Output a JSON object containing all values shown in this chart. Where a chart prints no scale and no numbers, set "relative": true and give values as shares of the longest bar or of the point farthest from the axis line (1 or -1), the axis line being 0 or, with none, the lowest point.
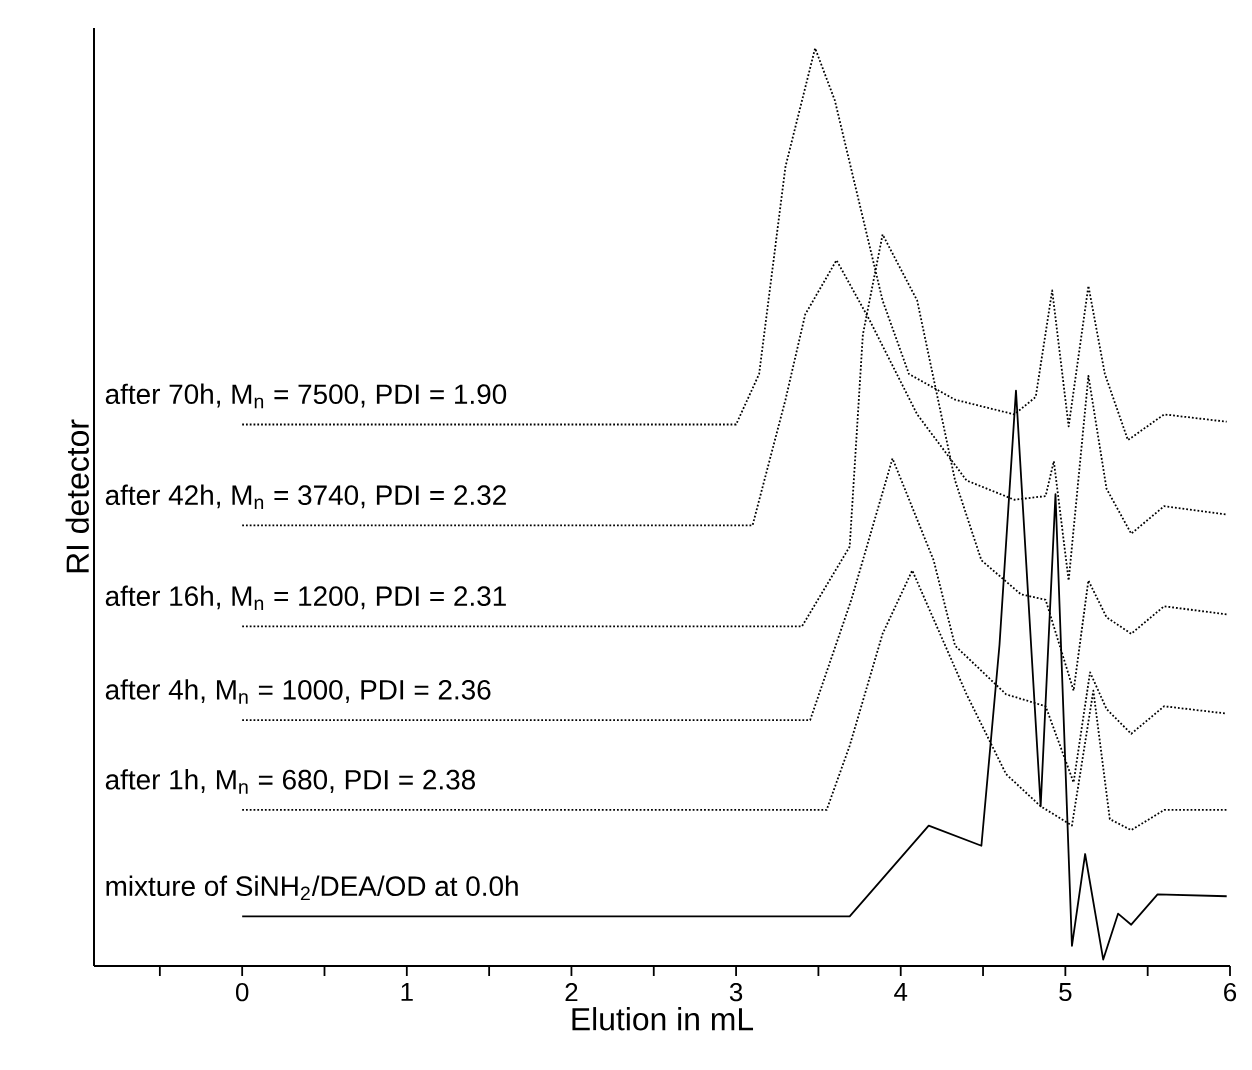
{
  "chart_data": {
    "type": "line",
    "xlabel": "Elution in mL",
    "ylabel": "RI detector",
    "relative": true,
    "xlim": [
      -0.9,
      6
    ],
    "xticks": [
      {
        "value": -0.5,
        "label": null
      },
      0,
      {
        "value": 0.5,
        "label": null
      },
      1,
      {
        "value": 1.5,
        "label": null
      },
      2,
      {
        "value": 2.5,
        "label": null
      },
      3,
      {
        "value": 3.5,
        "label": null
      },
      4,
      {
        "value": 4.5,
        "label": null
      },
      5,
      {
        "value": 5.5,
        "label": null
      },
      6
    ],
    "tick_labels": "x",
    "marker": "none",
    "series": [
      {
        "name": "after 70h, M$_{n}$ = 7500, PDI = 1.90",
        "color": "#000000",
        "line_style": "dotted",
        "x": [
          0,
          3.0,
          3.14,
          3.3,
          3.48,
          3.6,
          3.89,
          4.05,
          4.33,
          4.69,
          4.82,
          4.92,
          5.02,
          5.14,
          5.24,
          5.38,
          5.6,
          5.98
        ],
        "values": [
          0.59,
          0.59,
          0.645,
          0.871,
          1.0,
          0.943,
          0.725,
          0.645,
          0.617,
          0.601,
          0.62,
          0.736,
          0.588,
          0.741,
          0.645,
          0.573,
          0.601,
          0.593
        ]
      },
      {
        "name": "after 42h, M$_{n}$ = 3740, PDI = 2.32",
        "color": "#000000",
        "line_style": "dotted",
        "x": [
          0,
          3.1,
          3.3,
          3.42,
          3.61,
          3.81,
          4.1,
          4.4,
          4.69,
          4.88,
          4.93,
          5.02,
          5.14,
          5.25,
          5.4,
          5.6,
          5.98
        ],
        "values": [
          0.48,
          0.48,
          0.617,
          0.71,
          0.769,
          0.704,
          0.601,
          0.529,
          0.508,
          0.512,
          0.55,
          0.42,
          0.643,
          0.52,
          0.471,
          0.501,
          0.492
        ]
      },
      {
        "name": "after 16h, M$_{n}$ = 1200, PDI = 2.31",
        "color": "#000000",
        "line_style": "dotted",
        "x": [
          0,
          3.4,
          3.69,
          3.77,
          3.89,
          4.1,
          4.33,
          4.49,
          4.73,
          4.88,
          5.05,
          5.14,
          5.25,
          5.4,
          5.6,
          5.98
        ],
        "values": [
          0.37,
          0.37,
          0.457,
          0.688,
          0.797,
          0.725,
          0.529,
          0.442,
          0.405,
          0.399,
          0.3,
          0.42,
          0.38,
          0.362,
          0.392,
          0.383
        ]
      },
      {
        "name": "after 4h, M$_{n}$ = 1000, PDI = 2.36",
        "color": "#000000",
        "line_style": "dotted",
        "x": [
          0,
          3.45,
          3.7,
          3.95,
          4.2,
          4.33,
          4.64,
          4.88,
          5.05,
          5.15,
          5.25,
          5.4,
          5.6,
          5.98
        ],
        "values": [
          0.268,
          0.268,
          0.399,
          0.553,
          0.442,
          0.349,
          0.296,
          0.283,
          0.2,
          0.32,
          0.28,
          0.253,
          0.283,
          0.275
        ]
      },
      {
        "name": "after 1h, M$_{n}$ = 680, PDI = 2.38",
        "color": "#000000",
        "line_style": "dotted",
        "x": [
          0,
          3.55,
          3.69,
          3.89,
          4.07,
          4.4,
          4.64,
          4.85,
          5.04,
          5.17,
          5.27,
          5.4,
          5.6,
          5.98
        ],
        "values": [
          0.17,
          0.17,
          0.24,
          0.362,
          0.431,
          0.296,
          0.209,
          0.174,
          0.153,
          0.3,
          0.16,
          0.148,
          0.17,
          0.17
        ]
      },
      {
        "name": "mixture of SiNH$_{2}$/DEA/OD at 0.0h",
        "color": "#000000",
        "line_style": "solid",
        "x": [
          0,
          3.69,
          4.17,
          4.49,
          4.6,
          4.7,
          4.85,
          4.94,
          5.04,
          5.12,
          5.23,
          5.32,
          5.4,
          5.56,
          5.98
        ],
        "values": [
          0.054,
          0.054,
          0.153,
          0.131,
          0.35,
          0.627,
          0.174,
          0.514,
          0.022,
          0.122,
          0.007,
          0.057,
          0.045,
          0.078,
          0.076
        ]
      }
    ]
  }
}
